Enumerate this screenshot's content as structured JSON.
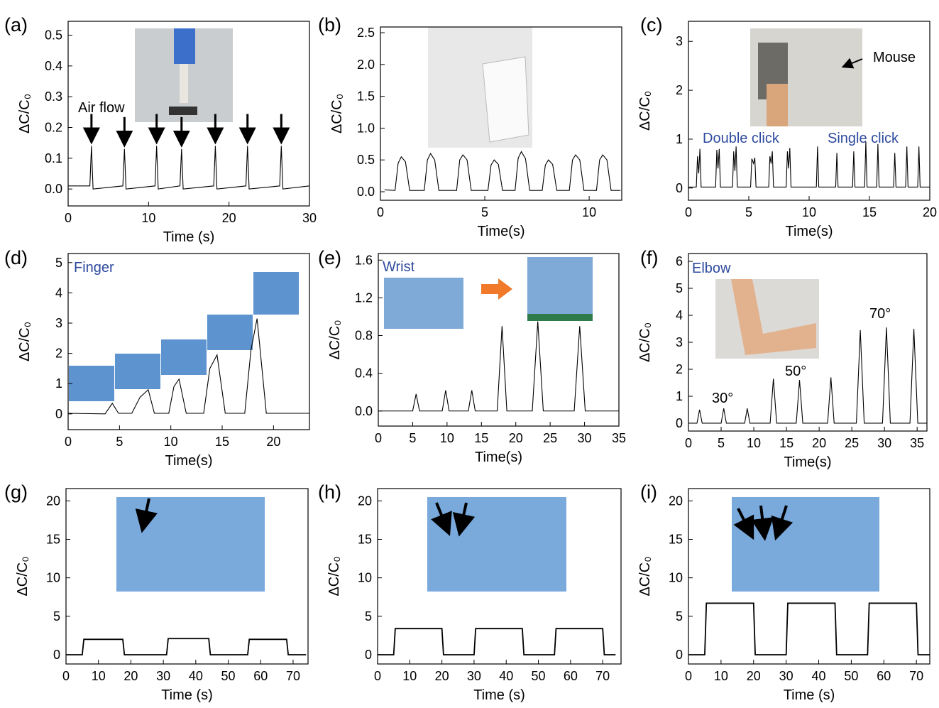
{
  "chart_data": [
    {
      "type": "line",
      "panel_label": "(a)",
      "xlabel": "Time (s)",
      "ylabel": "ΔC/C₀",
      "arrows": true,
      "annotations": [
        {
          "text": "Air flow",
          "color": "#000000"
        }
      ],
      "xlim": [
        0,
        30
      ],
      "ylim": [
        -0.055,
        0.545
      ],
      "xticks": [
        0,
        10,
        20,
        30
      ],
      "yticks": [
        {
          "value": 0,
          "label": "0.0"
        },
        0.1,
        0.2,
        0.3,
        0.4,
        0.5
      ],
      "series": [
        {
          "color": "#000000",
          "x": [
            0,
            2.7,
            2.9,
            3.1,
            6.8,
            7.0,
            7.2,
            10.8,
            11.0,
            11.2,
            13.9,
            14.1,
            14.3,
            18.1,
            18.3,
            18.5,
            22.1,
            22.3,
            22.5,
            26.3,
            26.5,
            26.7,
            30
          ],
          "values": [
            0.01,
            0.01,
            0.14,
            0.0,
            0.01,
            0.13,
            0.0,
            0.01,
            0.14,
            0.0,
            0.01,
            0.13,
            0.0,
            0.01,
            0.14,
            0.0,
            0.01,
            0.14,
            0.0,
            0.01,
            0.14,
            0.0,
            0.01
          ]
        }
      ]
    },
    {
      "type": "line",
      "panel_label": "(b)",
      "xlabel": "Time(s)",
      "ylabel": "ΔC/C₀",
      "annotations": [],
      "xlim": [
        0,
        11.56
      ],
      "ylim": [
        -0.134,
        2.59
      ],
      "xticks": [
        0,
        5,
        10
      ],
      "yticks": [
        {
          "value": 0,
          "label": "0.0"
        },
        0.5,
        {
          "value": 1,
          "label": "1.0"
        },
        1.5,
        {
          "value": 2,
          "label": "2.0"
        },
        2.5
      ],
      "series": [
        {
          "color": "#000000",
          "x": [
            0.2,
            0.7,
            0.85,
            1.0,
            1.2,
            1.4,
            2.1,
            2.25,
            2.4,
            2.6,
            2.8,
            3.65,
            3.8,
            3.95,
            4.15,
            4.35,
            5.15,
            5.3,
            5.45,
            5.65,
            5.85,
            6.45,
            6.6,
            6.75,
            6.95,
            7.15,
            7.75,
            7.9,
            8.05,
            8.25,
            8.45,
            9.05,
            9.2,
            9.35,
            9.55,
            9.75,
            10.35,
            10.5,
            10.65,
            10.85,
            11.05,
            11.5
          ],
          "values": [
            0.03,
            0.02,
            0.45,
            0.55,
            0.47,
            0.02,
            0.02,
            0.5,
            0.6,
            0.5,
            0.02,
            0.02,
            0.5,
            0.58,
            0.5,
            0.02,
            0.02,
            0.42,
            0.5,
            0.43,
            0.02,
            0.02,
            0.53,
            0.63,
            0.52,
            0.02,
            0.02,
            0.42,
            0.5,
            0.43,
            0.02,
            0.02,
            0.5,
            0.58,
            0.5,
            0.02,
            0.02,
            0.5,
            0.58,
            0.5,
            0.02,
            0.02
          ]
        }
      ]
    },
    {
      "type": "line",
      "panel_label": "(c)",
      "xlabel": "Time(s)",
      "ylabel": "ΔC/C₀",
      "annotations": [
        {
          "text": "Mouse",
          "color": "#000000"
        },
        {
          "text": "Double click",
          "color": "#2e4a9e"
        },
        {
          "text": "Single click",
          "color": "#2e4a9e"
        }
      ],
      "xlim": [
        0,
        20
      ],
      "ylim": [
        -0.25,
        3.41
      ],
      "xticks": [
        0,
        5,
        10,
        15,
        20
      ],
      "yticks": [
        0,
        1,
        2,
        3
      ],
      "series": [
        {
          "color": "#000000",
          "x": [
            0,
            0.65,
            0.75,
            0.85,
            0.95,
            1.05,
            2.25,
            2.35,
            2.45,
            2.55,
            2.65,
            3.65,
            3.75,
            3.85,
            3.95,
            4.05,
            5.15,
            5.25,
            5.4,
            5.5,
            5.6,
            6.65,
            6.75,
            6.85,
            6.95,
            7.05,
            8.1,
            8.2,
            8.3,
            8.4,
            8.5,
            10.6,
            10.7,
            10.8,
            12.2,
            12.3,
            12.4,
            13.6,
            13.7,
            13.8,
            14.6,
            14.7,
            14.8,
            15.6,
            15.7,
            15.8,
            17.0,
            17.1,
            17.2,
            18.0,
            18.1,
            18.2,
            19.0,
            19.1,
            19.2,
            20
          ],
          "values": [
            0.02,
            0.02,
            0.65,
            0.3,
            0.8,
            0.02,
            0.02,
            0.78,
            0.4,
            0.8,
            0.02,
            0.02,
            0.75,
            0.35,
            0.85,
            0.02,
            0.02,
            0.6,
            0.5,
            0.62,
            0.02,
            0.02,
            0.65,
            0.5,
            0.75,
            0.02,
            0.02,
            0.75,
            0.4,
            0.82,
            0.02,
            0.02,
            0.85,
            0.02,
            0.02,
            0.72,
            0.02,
            0.02,
            0.75,
            0.02,
            0.02,
            0.95,
            0.02,
            0.02,
            0.9,
            0.02,
            0.02,
            0.72,
            0.02,
            0.02,
            0.85,
            0.02,
            0.02,
            0.85,
            0.02,
            0.02
          ]
        }
      ]
    },
    {
      "type": "line",
      "panel_label": "(d)",
      "xlabel": "Time(s)",
      "ylabel": "ΔC/C₀",
      "annotations": [
        {
          "text": "Finger",
          "color": "#2e4a9e"
        }
      ],
      "xlim": [
        0,
        23.5
      ],
      "ylim": [
        -0.52,
        5.3
      ],
      "xticks": [
        0,
        5,
        10,
        15,
        20
      ],
      "yticks": [
        0,
        1,
        2,
        3,
        4,
        5
      ],
      "series": [
        {
          "color": "#000000",
          "x": [
            0,
            3.6,
            4.3,
            4.9,
            6.2,
            7.0,
            7.8,
            8.4,
            9.8,
            10.3,
            10.8,
            11.5,
            13.2,
            13.8,
            14.5,
            15.3,
            17.2,
            17.8,
            18.4,
            19.3,
            23.5
          ],
          "values": [
            0.02,
            0.0,
            0.35,
            0.02,
            0.02,
            0.55,
            0.8,
            0.02,
            0.02,
            0.9,
            1.15,
            0.02,
            0.02,
            1.5,
            1.95,
            0.02,
            0.02,
            2.1,
            3.15,
            0.02,
            0.02
          ]
        }
      ]
    },
    {
      "type": "line",
      "panel_label": "(e)",
      "xlabel": "Time(s)",
      "ylabel": "ΔC/C₀",
      "annotations": [
        {
          "text": "Wrist",
          "color": "#2e4a9e"
        }
      ],
      "xlim": [
        0,
        35
      ],
      "ylim": [
        -0.16,
        1.67
      ],
      "xticks": [
        0,
        5,
        10,
        15,
        20,
        25,
        30,
        35
      ],
      "yticks": [
        {
          "value": 0,
          "label": "0.0"
        },
        0.4,
        0.8,
        1.2,
        1.6
      ],
      "series": [
        {
          "color": "#000000",
          "x": [
            0,
            5.0,
            5.5,
            6.0,
            9.3,
            9.8,
            10.3,
            13.1,
            13.6,
            14.1,
            17.3,
            18.0,
            18.7,
            22.4,
            23.2,
            24.0,
            28.5,
            29.3,
            30.1,
            35
          ],
          "values": [
            0,
            0,
            0.18,
            0,
            0,
            0.22,
            0,
            0,
            0.22,
            0,
            0,
            0.9,
            0,
            0,
            0.95,
            0,
            0,
            0.9,
            0,
            0
          ]
        }
      ]
    },
    {
      "type": "line",
      "panel_label": "(f)",
      "xlabel": "Time(s)",
      "ylabel": "ΔC/C₀",
      "annotations": [
        {
          "text": "Elbow",
          "color": "#2e4a9e"
        },
        {
          "text": "30°",
          "color": "#000000"
        },
        {
          "text": "50°",
          "color": "#000000"
        },
        {
          "text": "70°",
          "color": "#000000"
        }
      ],
      "xlim": [
        0,
        36.5
      ],
      "ylim": [
        -0.29,
        6.29
      ],
      "xticks": [
        0,
        5,
        10,
        15,
        20,
        25,
        30,
        35
      ],
      "yticks": [
        0,
        1,
        2,
        3,
        4,
        5,
        6
      ],
      "series": [
        {
          "color": "#000000",
          "x": [
            0,
            1.3,
            1.7,
            2.1,
            5.0,
            5.4,
            5.8,
            8.6,
            9.0,
            9.4,
            12.5,
            13.0,
            13.5,
            16.5,
            17.0,
            17.5,
            21.3,
            21.8,
            22.3,
            25.7,
            26.3,
            26.9,
            29.7,
            30.3,
            30.9,
            33.9,
            34.5,
            35.1,
            36.5
          ],
          "values": [
            0,
            0,
            0.5,
            0,
            0,
            0.55,
            0,
            0,
            0.55,
            0,
            0,
            1.65,
            0,
            0,
            1.6,
            0,
            0,
            1.7,
            0,
            0,
            3.45,
            0,
            0,
            3.55,
            0,
            0,
            3.5,
            0,
            0
          ]
        }
      ]
    },
    {
      "type": "line",
      "panel_label": "(g)",
      "xlabel": "Time (s)",
      "ylabel": "ΔC/C₀",
      "annotations": [],
      "xlim": [
        0,
        74.6
      ],
      "ylim": [
        -1.2,
        21.6
      ],
      "xticks": [
        0,
        10,
        20,
        30,
        40,
        50,
        60,
        70
      ],
      "yticks": [
        0,
        5,
        10,
        15,
        20
      ],
      "series": [
        {
          "color": "#000000",
          "x": [
            0,
            5,
            5.5,
            17.5,
            18,
            31,
            31.5,
            44,
            44.5,
            56,
            56.5,
            68,
            68.5,
            74
          ],
          "values": [
            0,
            0,
            2.0,
            2.0,
            0,
            0,
            2.1,
            2.1,
            0,
            0,
            2.0,
            2.0,
            0,
            0
          ]
        }
      ]
    },
    {
      "type": "line",
      "panel_label": "(h)",
      "xlabel": "Time (s)",
      "ylabel": "ΔC/C₀",
      "annotations": [],
      "xlim": [
        0,
        75.7
      ],
      "ylim": [
        -1.2,
        21.6
      ],
      "xticks": [
        0,
        10,
        20,
        30,
        40,
        50,
        60,
        70
      ],
      "yticks": [
        0,
        5,
        10,
        15,
        20
      ],
      "series": [
        {
          "color": "#000000",
          "x": [
            0,
            5,
            5.5,
            20,
            20.5,
            30,
            30.5,
            45,
            45.5,
            55,
            55.5,
            70,
            70.5,
            74
          ],
          "values": [
            0,
            0,
            3.4,
            3.4,
            0,
            0,
            3.4,
            3.4,
            0,
            0,
            3.4,
            3.4,
            0,
            0
          ]
        }
      ]
    },
    {
      "type": "line",
      "panel_label": "(i)",
      "xlabel": "Time (s)",
      "ylabel": "ΔC/C₀",
      "annotations": [],
      "xlim": [
        0,
        74.1
      ],
      "ylim": [
        -1.2,
        21.6
      ],
      "xticks": [
        0,
        10,
        20,
        30,
        40,
        50,
        60,
        70
      ],
      "yticks": [
        0,
        5,
        10,
        15,
        20
      ],
      "series": [
        {
          "color": "#000000",
          "x": [
            0,
            5,
            5.5,
            20,
            20.5,
            30,
            30.5,
            45,
            45.5,
            55,
            55.5,
            70,
            70.5,
            74
          ],
          "values": [
            0,
            0,
            6.7,
            6.7,
            0,
            0,
            6.7,
            6.7,
            0,
            0,
            6.7,
            6.7,
            0,
            0
          ]
        }
      ]
    }
  ]
}
